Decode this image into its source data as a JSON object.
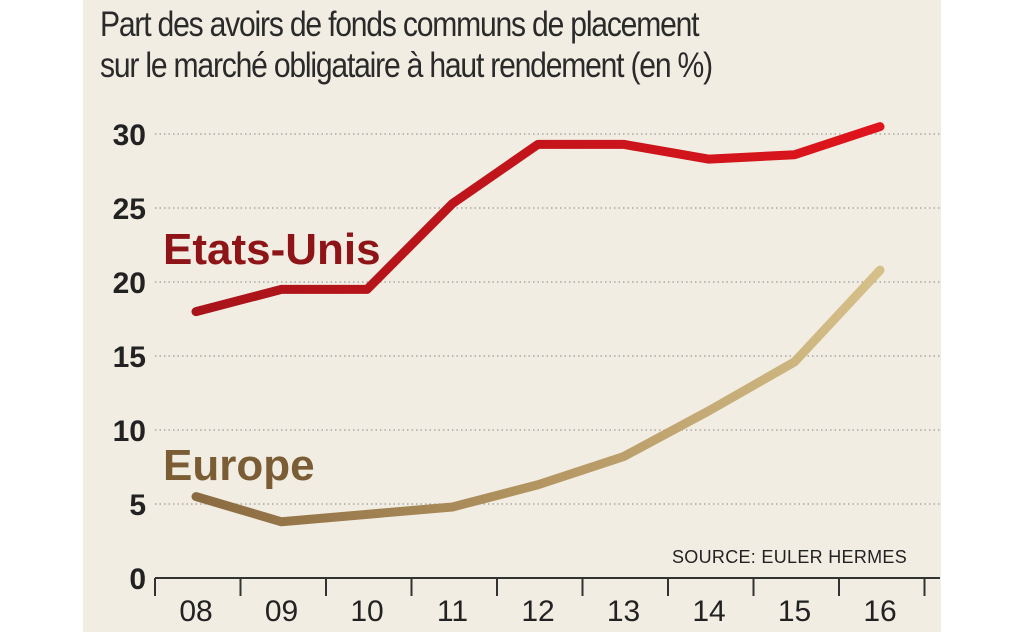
{
  "chart_data": {
    "type": "line",
    "title_lines": [
      "Part des avoirs de fonds communs de placement",
      "sur le marché obligataire à haut rendement (en %)"
    ],
    "x": [
      "08",
      "09",
      "10",
      "11",
      "12",
      "13",
      "14",
      "15",
      "16"
    ],
    "yticks": [
      "0",
      "5",
      "10",
      "15",
      "20",
      "25",
      "30"
    ],
    "ylim": [
      0,
      30
    ],
    "series": [
      {
        "name": "Etats-Unis",
        "color": "#c0141c",
        "values": [
          18.0,
          19.5,
          19.5,
          25.3,
          29.3,
          29.3,
          28.3,
          28.6,
          30.5
        ]
      },
      {
        "name": "Europe",
        "color": "#c9b27a",
        "values": [
          5.5,
          3.8,
          4.3,
          4.8,
          6.3,
          8.2,
          11.3,
          14.6,
          20.8
        ]
      }
    ],
    "grid": "horizontal-dotted",
    "source": "SOURCE: EULER HERMES"
  }
}
